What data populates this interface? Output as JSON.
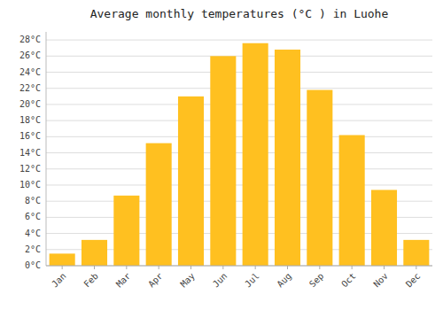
{
  "chart_data": {
    "type": "bar",
    "title": "Average monthly temperatures (°C ) in Luohe",
    "categories": [
      "Jan",
      "Feb",
      "Mar",
      "Apr",
      "May",
      "Jun",
      "Jul",
      "Aug",
      "Sep",
      "Oct",
      "Nov",
      "Dec"
    ],
    "values": [
      1.5,
      3.2,
      8.7,
      15.2,
      21.0,
      26.0,
      27.6,
      26.8,
      21.8,
      16.2,
      9.4,
      3.2
    ],
    "color": "#FFC020",
    "ylim": [
      0,
      29
    ],
    "yticks": [
      {
        "value": 0,
        "label": "0°C"
      },
      {
        "value": 2,
        "label": "2°C"
      },
      {
        "value": 4,
        "label": "4°C"
      },
      {
        "value": 6,
        "label": "6°C"
      },
      {
        "value": 8,
        "label": "8°C"
      },
      {
        "value": 10,
        "label": "10°C"
      },
      {
        "value": 12,
        "label": "12°C"
      },
      {
        "value": 14,
        "label": "14°C"
      },
      {
        "value": 16,
        "label": "16°C"
      },
      {
        "value": 18,
        "label": "18°C"
      },
      {
        "value": 20,
        "label": "20°C"
      },
      {
        "value": 22,
        "label": "22°C"
      },
      {
        "value": 24,
        "label": "24°C"
      },
      {
        "value": 26,
        "label": "26°C"
      },
      {
        "value": 28,
        "label": "28°C"
      }
    ],
    "grid": true
  }
}
